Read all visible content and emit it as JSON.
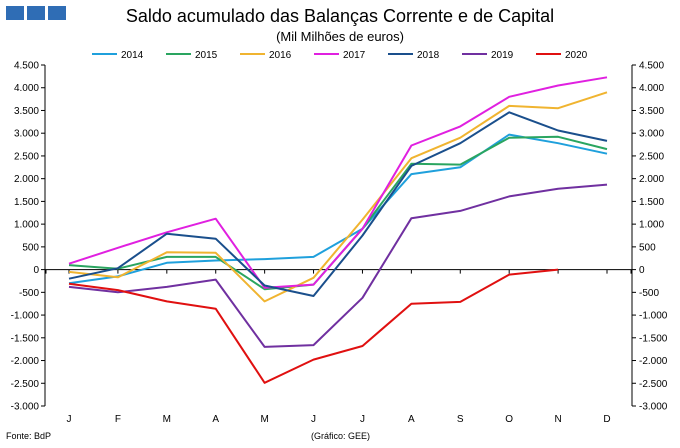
{
  "header": {
    "title": "Saldo acumulado das Balanças Corrente e de Capital",
    "subtitle": "(Mil Milhões de euros)",
    "logo_color": "#2F6DB5"
  },
  "footer": {
    "source": "Fonte: BdP",
    "credit": "(Gráfico: GEE)"
  },
  "chart_data": {
    "type": "line",
    "title": "Saldo acumulado das Balanças Corrente e de Capital",
    "subtitle": "(Mil Milhões de euros)",
    "categories": [
      "J",
      "F",
      "M",
      "A",
      "M",
      "J",
      "J",
      "A",
      "S",
      "O",
      "N",
      "D"
    ],
    "ylim": [
      -3000,
      4500
    ],
    "yticks": [
      -3000,
      -2500,
      -2000,
      -1500,
      -1000,
      -500,
      0,
      500,
      1000,
      1500,
      2000,
      2500,
      3000,
      3500,
      4000,
      4500
    ],
    "ytick_labels": [
      "-3.000",
      "-2.500",
      "-2.000",
      "-1.500",
      "-1.000",
      "-500",
      "0",
      "500",
      "1.000",
      "1.500",
      "2.000",
      "2.500",
      "3.000",
      "3.500",
      "4.000",
      "4.500"
    ],
    "grid": false,
    "dual_y_axis": true,
    "legend_position": "top",
    "series": [
      {
        "name": "2014",
        "color": "#1FA0DC",
        "values": [
          -300,
          -150,
          150,
          200,
          230,
          280,
          900,
          2100,
          2250,
          2970,
          2780,
          2550
        ]
      },
      {
        "name": "2015",
        "color": "#2AA560",
        "values": [
          100,
          20,
          280,
          280,
          -430,
          -330,
          900,
          2330,
          2310,
          2900,
          2920,
          2650
        ]
      },
      {
        "name": "2016",
        "color": "#F0B430",
        "values": [
          -50,
          -170,
          380,
          370,
          -700,
          -180,
          1100,
          2450,
          2900,
          3600,
          3550,
          3900
        ]
      },
      {
        "name": "2017",
        "color": "#E020E0",
        "values": [
          130,
          480,
          820,
          1120,
          -400,
          -330,
          900,
          2730,
          3150,
          3800,
          4050,
          4230
        ]
      },
      {
        "name": "2018",
        "color": "#1A4F8C",
        "values": [
          -200,
          30,
          790,
          680,
          -350,
          -580,
          750,
          2280,
          2780,
          3460,
          3060,
          2830
        ]
      },
      {
        "name": "2019",
        "color": "#7030A0",
        "values": [
          -380,
          -500,
          -380,
          -220,
          -1700,
          -1660,
          -620,
          1130,
          1290,
          1610,
          1780,
          1870
        ]
      },
      {
        "name": "2020",
        "color": "#E01010",
        "values": [
          -310,
          -450,
          -700,
          -860,
          -2490,
          -1980,
          -1680,
          -750,
          -710,
          -110,
          0,
          null
        ]
      }
    ]
  }
}
